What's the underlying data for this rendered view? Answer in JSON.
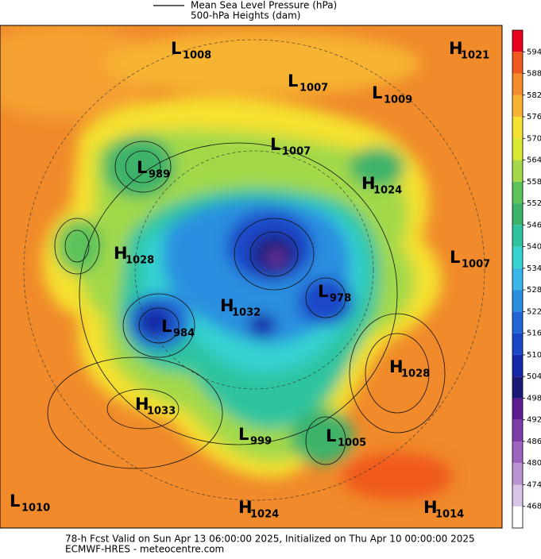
{
  "legend": {
    "items": [
      "Mean Sea Level Pressure (hPa)",
      "500-hPa Heights (dam)"
    ]
  },
  "centers": [
    {
      "type": "L",
      "value": 1008
    },
    {
      "type": "H",
      "value": 1021
    },
    {
      "type": "L",
      "value": 1007
    },
    {
      "type": "L",
      "value": 1009
    },
    {
      "type": "L",
      "value": 1007
    },
    {
      "type": "L",
      "value": 989
    },
    {
      "type": "H",
      "value": 1024
    },
    {
      "type": "H",
      "value": 1028
    },
    {
      "type": "L",
      "value": 1007
    },
    {
      "type": "L",
      "value": 978
    },
    {
      "type": "H",
      "value": 1032
    },
    {
      "type": "L",
      "value": 984
    },
    {
      "type": "H",
      "value": 1028
    },
    {
      "type": "H",
      "value": 1033
    },
    {
      "type": "L",
      "value": 999
    },
    {
      "type": "L",
      "value": 1005
    },
    {
      "type": "L",
      "value": 1010
    },
    {
      "type": "H",
      "value": 1024
    },
    {
      "type": "H",
      "value": 1014
    }
  ],
  "colorbar": {
    "levels": [
      468,
      474,
      480,
      486,
      492,
      498,
      504,
      510,
      516,
      522,
      528,
      534,
      540,
      546,
      552,
      558,
      564,
      570,
      576,
      582,
      588,
      594
    ],
    "colors": [
      "#ffffff",
      "#d8c4e6",
      "#bb92d2",
      "#9c64be",
      "#7e3ca8",
      "#5e1c90",
      "#1c1a78",
      "#1428a8",
      "#1a46c8",
      "#2266d6",
      "#2a8fe0",
      "#3ab7e8",
      "#36d2d2",
      "#2ec4a0",
      "#3cb36a",
      "#5cc35b",
      "#a3d94a",
      "#d9e830",
      "#f5e12f",
      "#f7b433",
      "#f58b2a",
      "#f05a1e",
      "#e8001c"
    ]
  },
  "footer": {
    "line1": "78-h Fcst Valid on Sun Apr 13 06:00:00 2025, Initialized on Thu Apr 10 00:00:00 2025",
    "line2": "ECMWF-HRES  - meteocentre.com"
  }
}
